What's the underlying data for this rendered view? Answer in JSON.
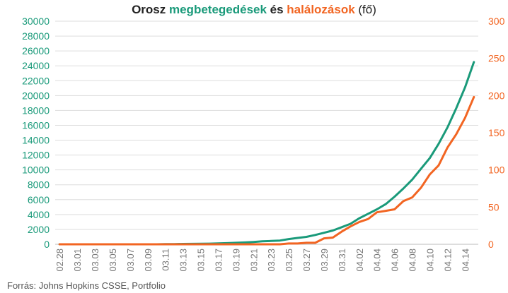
{
  "title": {
    "part1": "Orosz ",
    "cases_word": "megbetegedések",
    "part2": " és ",
    "deaths_word": "halálozások",
    "part3": " (fő)"
  },
  "source": "Forrás: Johns Hopkins CSSE, Portfolio",
  "colors": {
    "cases": "#1a9a7a",
    "deaths": "#f26522",
    "grid": "#dddddd",
    "tick_text": "#777777"
  },
  "chart_data": {
    "type": "line",
    "x": [
      "02.28",
      "02.29",
      "03.01",
      "03.02",
      "03.03",
      "03.04",
      "03.05",
      "03.06",
      "03.07",
      "03.08",
      "03.09",
      "03.10",
      "03.11",
      "03.12",
      "03.13",
      "03.14",
      "03.15",
      "03.16",
      "03.17",
      "03.18",
      "03.19",
      "03.20",
      "03.21",
      "03.22",
      "03.23",
      "03.24",
      "03.25",
      "03.26",
      "03.27",
      "03.28",
      "03.29",
      "03.30",
      "03.31",
      "04.01",
      "04.02",
      "04.03",
      "04.04",
      "04.05",
      "04.06",
      "04.07",
      "04.08",
      "04.09",
      "04.10",
      "04.11",
      "04.12",
      "04.13",
      "04.14",
      "04.15"
    ],
    "x_tick_labels": [
      "02.28",
      "03.01",
      "03.03",
      "03.05",
      "03.07",
      "03.09",
      "03.11",
      "03.13",
      "03.15",
      "03.17",
      "03.19",
      "03.21",
      "03.23",
      "03.25",
      "03.27",
      "03.29",
      "03.31",
      "04.02",
      "04.04",
      "04.06",
      "04.08",
      "04.10",
      "04.12",
      "04.14"
    ],
    "series": [
      {
        "name": "megbetegedések",
        "axis": "left",
        "values": [
          0,
          0,
          0,
          0,
          0,
          0,
          0,
          0,
          0,
          0,
          0,
          0,
          20,
          30,
          50,
          60,
          65,
          90,
          115,
          150,
          200,
          250,
          310,
          400,
          450,
          500,
          700,
          850,
          1000,
          1250,
          1550,
          1850,
          2300,
          2750,
          3500,
          4100,
          4700,
          5400,
          6400,
          7500,
          8700,
          10150,
          11600,
          13500,
          15700,
          18300,
          21100,
          24500
        ]
      },
      {
        "name": "halálozások",
        "axis": "right",
        "values": [
          0,
          0,
          0,
          0,
          0,
          0,
          0,
          0,
          0,
          0,
          0,
          0,
          0,
          0,
          0,
          0,
          0,
          0,
          0,
          0,
          0,
          0,
          0,
          0,
          0,
          0,
          1,
          1,
          2,
          2,
          8,
          9,
          17,
          24,
          30,
          34,
          43,
          45,
          47,
          58,
          63,
          76,
          94,
          106,
          130,
          148,
          170,
          198
        ]
      }
    ],
    "y_left": {
      "range": [
        0,
        30000
      ],
      "ticks": [
        "0",
        "2000",
        "4000",
        "6000",
        "8000",
        "10000",
        "12000",
        "14000",
        "16000",
        "18000",
        "20000",
        "22000",
        "24000",
        "26000",
        "28000",
        "30000"
      ]
    },
    "y_right": {
      "range": [
        0,
        300
      ],
      "ticks": [
        "0",
        "50",
        "100",
        "150",
        "200",
        "250",
        "300"
      ]
    },
    "grid": "horizontal",
    "legend": "none"
  }
}
